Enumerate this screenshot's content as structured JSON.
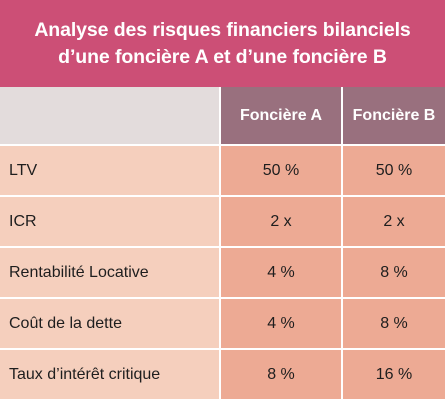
{
  "title": {
    "line1": "Analyse des risques financiers bilanciels",
    "line2": "d’une foncière A et d’une foncière B"
  },
  "table": {
    "columns": [
      "Foncière A",
      "Foncière B"
    ],
    "rows": [
      {
        "label": "LTV",
        "a": "50 %",
        "b": "50 %"
      },
      {
        "label": "ICR",
        "a": "2 x",
        "b": "2 x"
      },
      {
        "label": "Rentabilité Locative",
        "a": "4 %",
        "b": "8 %"
      },
      {
        "label": "Coût de la dette",
        "a": "4 %",
        "b": "8 %"
      },
      {
        "label": "Taux d’intérêt critique",
        "a": "8 %",
        "b": "16 %"
      }
    ]
  },
  "colors": {
    "title_background": "#cc4f76",
    "header_background": "#99707e",
    "corner_background": "#e3dcdc",
    "label_background": "#f5cfbd",
    "value_background": "#edaa94"
  }
}
